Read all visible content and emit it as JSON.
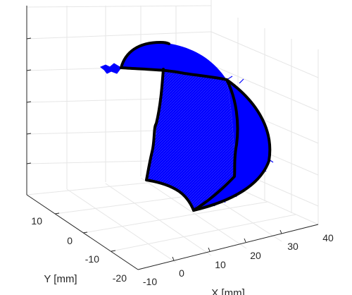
{
  "chart_data": {
    "type": "surface3d",
    "title": "",
    "xlabel": "X [mm]",
    "ylabel": "Y [mm]",
    "zlabel": "",
    "x_ticks": [
      "-10",
      "0",
      "10",
      "20",
      "30",
      "40"
    ],
    "y_ticks": [
      "-20",
      "-10",
      "0",
      "10"
    ],
    "z_ticks": [],
    "grid": true,
    "surface_color": "#0000ff",
    "edge_color": "#000000",
    "axis_color": "#262626",
    "grid_color": "#e6e6e6"
  }
}
